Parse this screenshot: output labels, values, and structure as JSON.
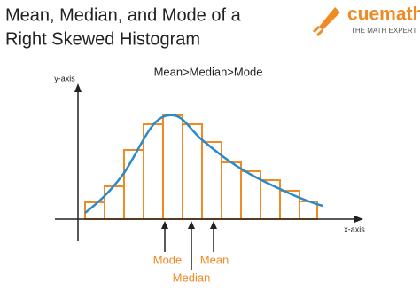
{
  "header": {
    "title_lines": [
      "Mean, Median, and Mode of a",
      "Right Skewed Histogram"
    ]
  },
  "logo": {
    "name": "cuemath",
    "tagline": "THE MATH EXPERT"
  },
  "relation": "Mean>Median>Mode",
  "axes": {
    "y": "y-axis",
    "x": "x-axis"
  },
  "markers": {
    "mode": "Mode",
    "median": "Median",
    "mean": "Mean"
  }
}
